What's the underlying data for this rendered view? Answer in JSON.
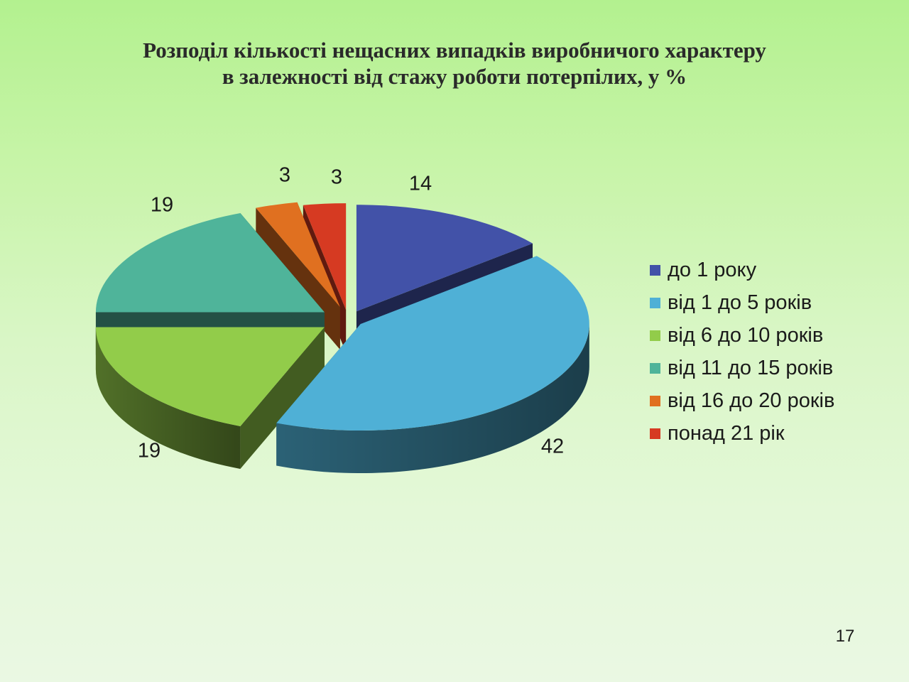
{
  "title": {
    "line1": "Розподіл кількості нещасних випадків виробничого характеру",
    "line2": "в залежності від стажу роботи потерпілих, у %"
  },
  "page_number": "17",
  "chart_data": {
    "type": "pie",
    "style": "3d-exploded",
    "title": "Розподіл кількості нещасних випадків виробничого характеру в залежності від стажу роботи потерпілих, у %",
    "categories": [
      "до 1 року",
      "від 1 до 5 років",
      "від 6 до 10 років",
      "від 11 до 15 років",
      "від 16 до 20 років",
      "понад 21 рік"
    ],
    "values": [
      14,
      42,
      19,
      19,
      3,
      3
    ],
    "labels": [
      "14",
      "42",
      "19",
      "19",
      "3",
      "3"
    ],
    "colors": [
      "#4252a8",
      "#4fb0d6",
      "#92cc4a",
      "#4fb49a",
      "#e07020",
      "#d63a22"
    ],
    "legend": "right"
  }
}
